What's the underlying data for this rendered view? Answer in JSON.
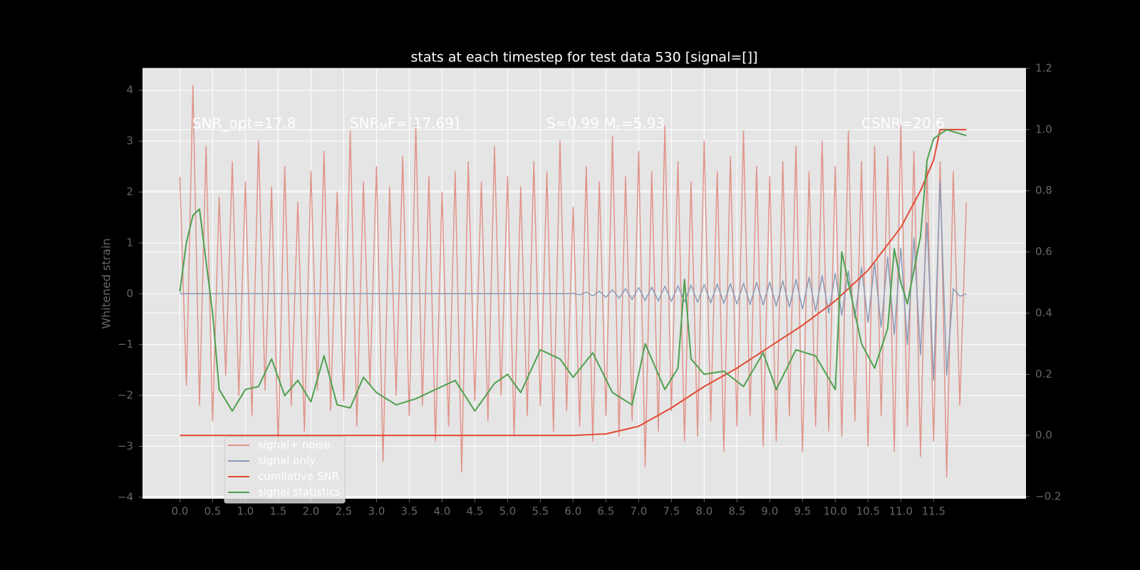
{
  "chart_data": {
    "type": "line",
    "title": "stats at each timestep for test data 530 [signal=[]]",
    "ylabel": "Whitened strain",
    "annotations": [
      {
        "parts": [
          "SNR_opt=17.8"
        ],
        "sub": [
          false
        ]
      },
      {
        "parts": [
          "SNR",
          "M",
          "F=[17.69]"
        ],
        "sub": [
          false,
          true,
          false
        ]
      },
      {
        "parts": [
          "S=0.99   M",
          "c",
          "=5.93"
        ],
        "sub": [
          false,
          true,
          false
        ]
      },
      {
        "parts": [
          "CSNR=20.6"
        ],
        "sub": [
          false
        ]
      }
    ],
    "xlim": [
      -0.57,
      12.91
    ],
    "ylim": [
      -4.03,
      4.43
    ],
    "y2lim": [
      -0.207,
      1.2
    ],
    "xticks": [
      {
        "value": 0,
        "label": "0.0"
      },
      0.5,
      {
        "value": 1,
        "label": "1.0"
      },
      1.5,
      {
        "value": 2,
        "label": "2.0"
      },
      2.5,
      {
        "value": 3,
        "label": "3.0"
      },
      3.5,
      {
        "value": 4,
        "label": "4.0"
      },
      4.5,
      {
        "value": 5,
        "label": "5.0"
      },
      5.5,
      {
        "value": 6,
        "label": "6.0"
      },
      6.5,
      {
        "value": 7,
        "label": "7.0"
      },
      7.5,
      {
        "value": 8,
        "label": "8.0"
      },
      8.5,
      {
        "value": 9,
        "label": "9.0"
      },
      9.5,
      {
        "value": 10,
        "label": "10.0"
      },
      10.5,
      {
        "value": 11,
        "label": "11.0"
      },
      11.5
    ],
    "yticks": [
      {
        "value": -4,
        "label": "−4"
      },
      {
        "value": -3,
        "label": "−3"
      },
      {
        "value": -2,
        "label": "−2"
      },
      {
        "value": -1,
        "label": "−1"
      },
      0,
      1,
      2,
      3,
      4
    ],
    "y2ticks": [
      {
        "value": -0.2,
        "label": "−0.2"
      },
      {
        "value": 0,
        "label": "0.0"
      },
      0.2,
      0.4,
      0.6,
      0.8,
      {
        "value": 1,
        "label": "1.0"
      },
      1.2
    ],
    "grid": true,
    "legend": "lower left",
    "x": [
      0,
      0.1,
      0.2,
      0.3,
      0.4,
      0.5,
      0.6,
      0.7,
      0.8,
      0.9,
      1,
      1.1,
      1.2,
      1.3,
      1.4,
      1.5,
      1.6,
      1.7,
      1.8,
      1.9,
      2,
      2.1,
      2.2,
      2.3,
      2.4,
      2.5,
      2.6,
      2.7,
      2.8,
      2.9,
      3,
      3.1,
      3.2,
      3.3,
      3.4,
      3.5,
      3.6,
      3.7,
      3.8,
      3.9,
      4,
      4.1,
      4.2,
      4.3,
      4.4,
      4.5,
      4.6,
      4.7,
      4.8,
      4.9,
      5,
      5.1,
      5.2,
      5.3,
      5.4,
      5.5,
      5.6,
      5.7,
      5.8,
      5.9,
      6,
      6.1,
      6.2,
      6.3,
      6.4,
      6.5,
      6.6,
      6.7,
      6.8,
      6.9,
      7,
      7.1,
      7.2,
      7.3,
      7.4,
      7.5,
      7.6,
      7.7,
      7.8,
      7.9,
      8,
      8.1,
      8.2,
      8.3,
      8.4,
      8.5,
      8.6,
      8.7,
      8.8,
      8.9,
      9,
      9.1,
      9.2,
      9.3,
      9.4,
      9.5,
      9.6,
      9.7,
      9.8,
      9.9,
      10,
      10.1,
      10.2,
      10.3,
      10.4,
      10.5,
      10.6,
      10.7,
      10.8,
      10.9,
      11,
      11.1,
      11.2,
      11.3,
      11.4,
      11.5,
      11.6,
      11.7,
      11.8,
      11.9,
      12
    ],
    "series": [
      {
        "name": "signal+ noise",
        "color": "#e0948a",
        "values": [
          2.3,
          -1.8,
          4.1,
          -2.2,
          2.9,
          -2.5,
          1.9,
          -1.6,
          2.6,
          -2.0,
          2.2,
          -2.4,
          3.0,
          -1.9,
          2.1,
          -3.0,
          2.5,
          -2.2,
          1.8,
          -2.7,
          2.4,
          -1.9,
          2.8,
          -2.3,
          2.0,
          -2.1,
          3.2,
          -2.6,
          2.2,
          -1.8,
          2.5,
          -3.3,
          2.1,
          -2.0,
          2.7,
          -2.4,
          3.3,
          -2.2,
          2.3,
          -2.9,
          2.0,
          -2.6,
          2.4,
          -3.5,
          2.6,
          -2.1,
          2.2,
          -2.5,
          2.9,
          -2.0,
          2.3,
          -2.8,
          2.1,
          -2.4,
          2.6,
          -2.2,
          2.4,
          -2.7,
          3.0,
          -2.3,
          1.7,
          -2.6,
          2.5,
          -2.9,
          2.2,
          -2.4,
          3.1,
          -2.8,
          2.3,
          -2.5,
          2.8,
          -3.4,
          2.4,
          -2.7,
          3.3,
          -2.3,
          2.6,
          -2.9,
          2.2,
          -2.8,
          3.0,
          -2.5,
          2.4,
          -3.1,
          2.7,
          -2.6,
          3.2,
          -2.4,
          2.5,
          -3.0,
          2.3,
          -2.9,
          2.6,
          -2.4,
          2.9,
          -3.1,
          2.4,
          -2.6,
          3.0,
          -2.7,
          2.5,
          -2.8,
          3.2,
          -2.5,
          2.6,
          -3.0,
          2.9,
          -2.4,
          2.7,
          -3.1,
          3.3,
          -2.6,
          2.8,
          -3.2,
          2.5,
          -2.9,
          2.6,
          -3.6,
          2.4,
          -2.2,
          1.8
        ]
      },
      {
        "name": "signal only",
        "color": "#8a9ab6",
        "values": [
          0,
          0,
          0,
          0,
          0,
          0,
          0,
          0,
          0,
          0,
          0,
          0,
          0,
          0,
          0,
          0,
          0,
          0,
          0,
          0,
          0,
          0,
          0,
          0,
          0,
          0,
          0,
          0,
          0,
          0,
          0,
          0,
          0,
          0,
          0,
          0,
          0,
          0,
          0,
          0,
          0,
          0,
          0,
          0,
          0,
          0,
          0,
          0,
          0,
          0,
          0,
          0,
          0,
          0,
          0,
          0,
          0,
          0,
          0,
          0,
          0.01,
          -0.02,
          0.03,
          -0.04,
          0.05,
          -0.07,
          0.08,
          -0.09,
          0.1,
          -0.11,
          0.12,
          -0.13,
          0.13,
          -0.14,
          0.15,
          -0.15,
          0.16,
          -0.16,
          0.17,
          -0.17,
          0.18,
          -0.18,
          0.19,
          -0.19,
          0.2,
          -0.2,
          0.21,
          -0.21,
          0.22,
          -0.22,
          0.23,
          -0.24,
          0.25,
          -0.26,
          0.28,
          -0.3,
          0.32,
          -0.34,
          0.36,
          -0.38,
          0.4,
          -0.42,
          0.45,
          -0.48,
          0.52,
          -0.56,
          0.6,
          -0.66,
          0.72,
          -0.8,
          0.9,
          -1.0,
          1.1,
          -1.2,
          1.4,
          -1.7,
          2.2,
          -1.6,
          0.1,
          -0.05,
          0
        ]
      },
      {
        "name": "cumilative SNR",
        "color": "#e24a33",
        "axis": "y2",
        "x": [
          0,
          6.0,
          6.5,
          7.0,
          7.5,
          8.0,
          8.5,
          9.0,
          9.5,
          10.0,
          10.5,
          11.0,
          11.3,
          11.5,
          11.6,
          12.0
        ],
        "values": [
          0,
          0,
          0.005,
          0.03,
          0.09,
          0.16,
          0.22,
          0.29,
          0.36,
          0.44,
          0.54,
          0.68,
          0.8,
          0.9,
          1.0,
          1.0
        ]
      },
      {
        "name": "signal statistics",
        "color": "#4fa04f",
        "axis": "y2",
        "x": [
          0,
          0.1,
          0.2,
          0.3,
          0.5,
          0.6,
          0.8,
          1.0,
          1.2,
          1.4,
          1.6,
          1.8,
          2.0,
          2.2,
          2.4,
          2.6,
          2.8,
          3.0,
          3.3,
          3.6,
          3.9,
          4.2,
          4.5,
          4.8,
          5.0,
          5.2,
          5.5,
          5.8,
          6.0,
          6.3,
          6.6,
          6.9,
          7.1,
          7.4,
          7.6,
          7.7,
          7.8,
          8.0,
          8.3,
          8.6,
          8.9,
          9.1,
          9.4,
          9.7,
          10.0,
          10.1,
          10.2,
          10.4,
          10.6,
          10.8,
          10.9,
          11.0,
          11.1,
          11.3,
          11.4,
          11.5,
          11.7,
          12.0
        ],
        "values": [
          0.47,
          0.63,
          0.72,
          0.74,
          0.4,
          0.15,
          0.08,
          0.15,
          0.16,
          0.25,
          0.13,
          0.18,
          0.11,
          0.26,
          0.1,
          0.09,
          0.19,
          0.14,
          0.1,
          0.12,
          0.15,
          0.18,
          0.08,
          0.17,
          0.2,
          0.14,
          0.28,
          0.25,
          0.19,
          0.27,
          0.14,
          0.1,
          0.3,
          0.15,
          0.22,
          0.51,
          0.25,
          0.2,
          0.21,
          0.16,
          0.27,
          0.15,
          0.28,
          0.26,
          0.15,
          0.6,
          0.5,
          0.3,
          0.22,
          0.35,
          0.61,
          0.5,
          0.43,
          0.65,
          0.9,
          0.97,
          1.0,
          0.98
        ]
      }
    ]
  }
}
